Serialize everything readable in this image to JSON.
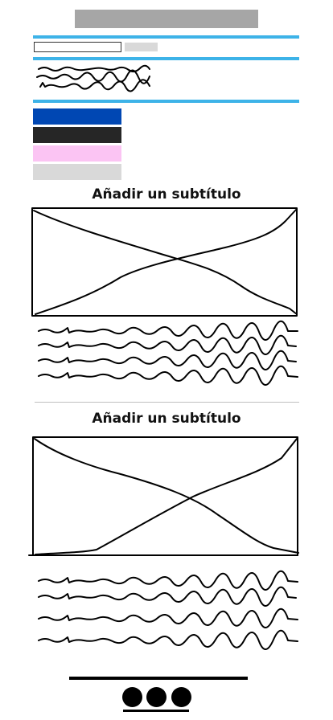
{
  "sections": [
    {
      "subtitle": "Añadir un subtítulo"
    },
    {
      "subtitle": "Añadir un subtítulo"
    }
  ],
  "swatches": [
    {
      "name": "blue",
      "color": "#0047b3"
    },
    {
      "name": "dark",
      "color": "#262626"
    },
    {
      "name": "pink",
      "color": "#fbc4f3"
    },
    {
      "name": "light-gray",
      "color": "#d9d9d9"
    }
  ],
  "colors": {
    "accent_line": "#3db3e8",
    "title_bar": "#a6a6a6",
    "search_button": "#d9d9d9"
  },
  "icons": {
    "image_placeholder": "image-placeholder-icon",
    "dots_menu": "three-dots-menu-icon"
  }
}
